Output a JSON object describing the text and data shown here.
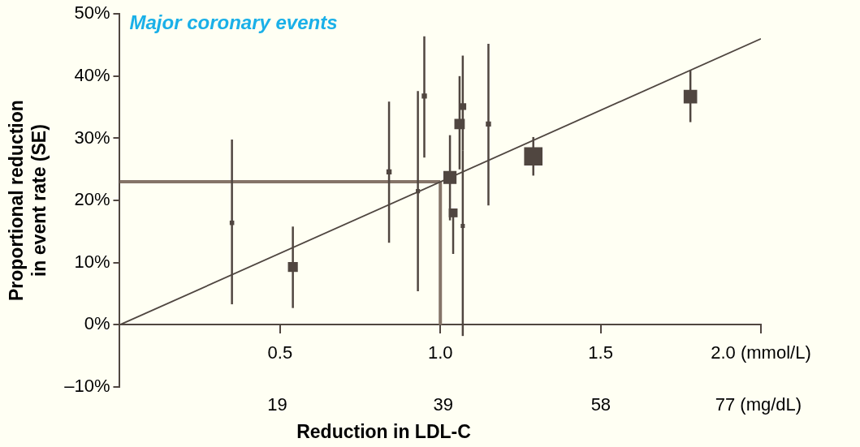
{
  "chart_data": {
    "type": "bubble",
    "title": "Major coronary events",
    "xlabel": "Reduction in LDL-C",
    "ylabel": "Proportional reduction in event rate (SE)",
    "xlim": [
      0,
      2.0
    ],
    "xticks": [
      {
        "value": 0.5,
        "label": "0.5"
      },
      {
        "value": 1.0,
        "label": "1.0"
      },
      {
        "value": 1.5,
        "label": "1.5"
      },
      {
        "value": 2.0,
        "label": "2.0 (mmol/L)"
      }
    ],
    "x2lim": [
      0,
      77.3
    ],
    "x2ticks": [
      19,
      39,
      58,
      {
        "value": 77,
        "label": "77 (mg/dL)"
      }
    ],
    "ylim": [
      -10,
      50
    ],
    "yticks": [
      {
        "value": -10,
        "label": "–10%"
      },
      {
        "value": 0,
        "label": "0%"
      },
      {
        "value": 10,
        "label": "10%"
      },
      {
        "value": 20,
        "label": "20%"
      },
      {
        "value": 30,
        "label": "30%"
      },
      {
        "value": 40,
        "label": "40%"
      },
      {
        "value": 50,
        "label": "50%"
      }
    ],
    "marker": "square",
    "series": [
      {
        "type": "bubble",
        "color": "#504640",
        "x": [
          0.35,
          0.54,
          0.84,
          0.93,
          0.95,
          1.03,
          1.04,
          1.06,
          1.07,
          1.07,
          1.15,
          1.29,
          1.78
        ],
        "values": [
          16.4,
          9.3,
          24.6,
          21.5,
          36.8,
          23.7,
          18.0,
          32.3,
          35.1,
          15.9,
          32.3,
          27.1,
          36.7
        ],
        "sizes": [
          0.06,
          0.29,
          0.08,
          0.05,
          0.08,
          0.51,
          0.23,
          0.32,
          0.14,
          0.05,
          0.08,
          1,
          0.54
        ],
        "errors": [
          [
            3.3,
            29.8
          ],
          [
            2.7,
            15.8
          ],
          [
            13.2,
            35.9
          ],
          [
            5.4,
            37.6
          ],
          [
            26.9,
            46.4
          ],
          [
            16.8,
            30.5
          ],
          [
            11.4,
            18.0
          ],
          [
            25,
            40
          ],
          [
            28,
            43.3
          ],
          [
            -1.8,
            28
          ],
          [
            19.2,
            45.2
          ],
          [
            24.0,
            30.2
          ],
          [
            32.6,
            40.9
          ]
        ]
      },
      {
        "type": "line",
        "color": "#4f4640",
        "x": [
          0,
          2.0
        ],
        "values": [
          0,
          46
        ],
        "marker": "none"
      }
    ],
    "ref_lines": [
      {
        "axis": "y",
        "value": 23,
        "color": "#857468"
      },
      {
        "axis": "x",
        "value": 1.0,
        "color": "#857468"
      }
    ]
  }
}
